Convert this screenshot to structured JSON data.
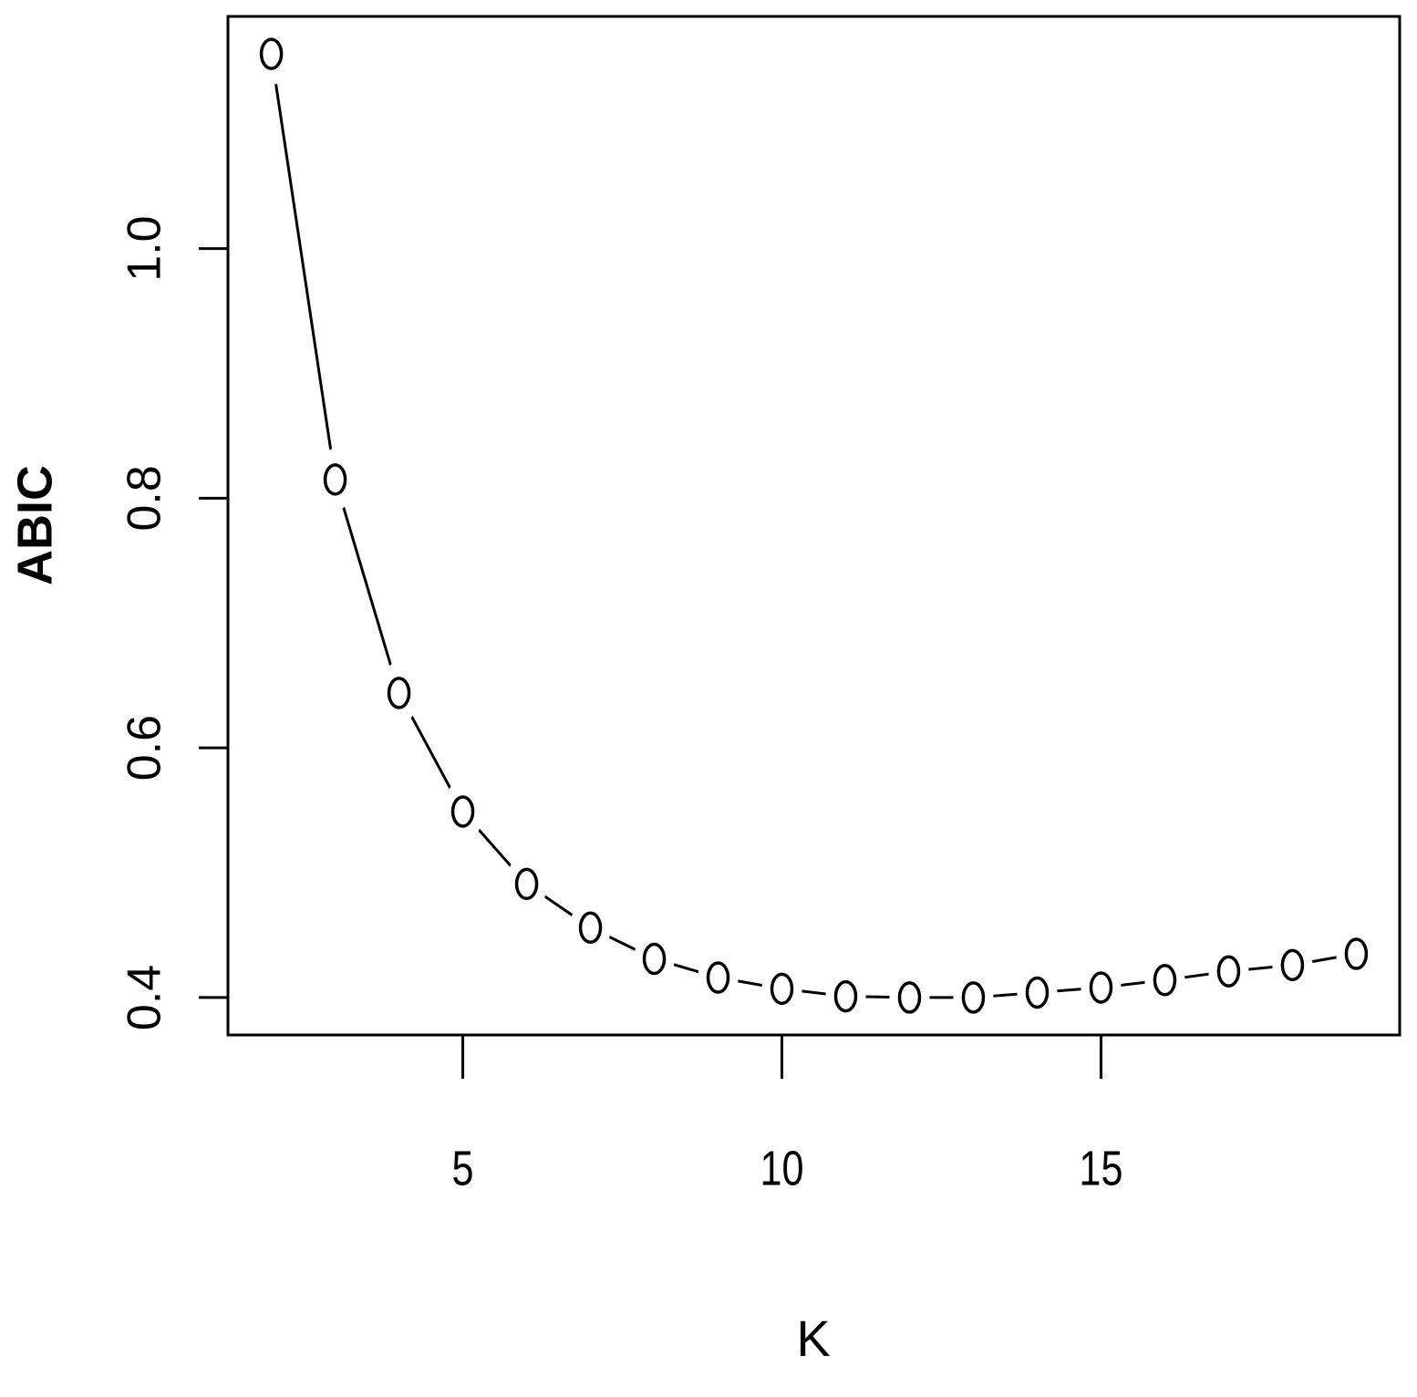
{
  "chart_data": {
    "type": "line",
    "xlabel": "K",
    "ylabel": "ABIC",
    "x": [
      2,
      3,
      4,
      5,
      6,
      7,
      8,
      9,
      10,
      11,
      12,
      13,
      14,
      15,
      16,
      17,
      18,
      19
    ],
    "values": [
      1.156,
      0.815,
      0.644,
      0.549,
      0.491,
      0.456,
      0.431,
      0.416,
      0.407,
      0.401,
      0.4,
      0.4,
      0.404,
      0.408,
      0.414,
      0.421,
      0.426,
      0.435
    ],
    "color": "#000000",
    "xlim": [
      1.32,
      19.68
    ],
    "xticks": [
      5,
      10,
      15
    ],
    "ylim": [
      0.37,
      1.186
    ],
    "yticks": [
      {
        "value": 0.4,
        "label": "0.4"
      },
      {
        "value": 0.6,
        "label": "0.6"
      },
      {
        "value": 0.8,
        "label": "0.8"
      },
      {
        "value": 1.0,
        "label": "1.0"
      }
    ]
  }
}
